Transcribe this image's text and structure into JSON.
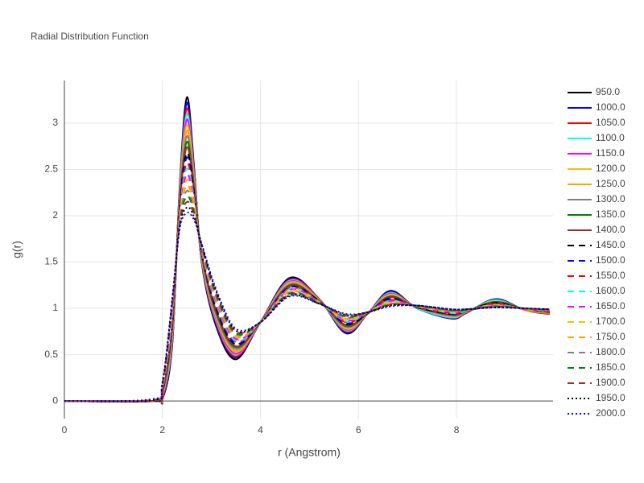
{
  "chart_data": {
    "type": "line",
    "title": "Radial Distribution Function",
    "x_label": "r (Angstrom)",
    "y_label": "g(r)",
    "x": [
      0,
      1.8,
      2.0,
      2.2,
      2.35,
      2.5,
      2.65,
      2.8,
      3.1,
      3.5,
      4.0,
      4.6,
      5.2,
      5.75,
      6.2,
      6.65,
      7.2,
      7.9,
      8.2,
      8.8,
      9.4,
      9.9
    ],
    "xlim": [
      0,
      9.97
    ],
    "xticks": [
      0,
      2,
      4,
      6,
      8
    ],
    "ylim": [
      -0.19,
      3.46
    ],
    "yticks": [
      0,
      0.5,
      1,
      1.5,
      2,
      2.5,
      3
    ],
    "grid": true,
    "legend": "right",
    "series": [
      {
        "name": "950.0",
        "color": "#000000",
        "dash": "solid",
        "values": [
          0,
          0,
          0.02,
          0.6,
          2.3,
          3.28,
          2.5,
          1.5,
          0.8,
          0.45,
          0.85,
          1.33,
          1.1,
          0.73,
          0.95,
          1.19,
          1.0,
          0.89,
          0.95,
          1.1,
          0.98,
          0.94
        ]
      },
      {
        "name": "1000.0",
        "color": "#0000ff",
        "dash": "solid",
        "values": [
          0,
          0,
          0.03,
          0.62,
          2.28,
          3.22,
          2.47,
          1.51,
          0.82,
          0.47,
          0.85,
          1.32,
          1.1,
          0.74,
          0.95,
          1.18,
          1.0,
          0.89,
          0.95,
          1.1,
          0.98,
          0.94
        ]
      },
      {
        "name": "1050.0",
        "color": "#ff0000",
        "dash": "solid",
        "values": [
          0,
          0,
          0.04,
          0.65,
          2.26,
          3.16,
          2.45,
          1.52,
          0.84,
          0.48,
          0.85,
          1.31,
          1.1,
          0.75,
          0.95,
          1.17,
          1.0,
          0.9,
          0.95,
          1.09,
          0.98,
          0.94
        ]
      },
      {
        "name": "1100.0",
        "color": "#00ffff",
        "dash": "solid",
        "values": [
          0,
          0,
          0.05,
          0.67,
          2.24,
          3.1,
          2.42,
          1.53,
          0.86,
          0.5,
          0.85,
          1.3,
          1.09,
          0.76,
          0.95,
          1.17,
          1.0,
          0.9,
          0.96,
          1.09,
          0.98,
          0.95
        ]
      },
      {
        "name": "1150.0",
        "color": "#ff00ff",
        "dash": "solid",
        "values": [
          0,
          0,
          0.05,
          0.7,
          2.21,
          3.04,
          2.4,
          1.54,
          0.88,
          0.51,
          0.85,
          1.29,
          1.09,
          0.77,
          0.95,
          1.16,
          1.01,
          0.91,
          0.96,
          1.08,
          0.98,
          0.95
        ]
      },
      {
        "name": "1200.0",
        "color": "#f5c000",
        "dash": "solid",
        "values": [
          0,
          0,
          0.06,
          0.72,
          2.19,
          2.98,
          2.37,
          1.55,
          0.9,
          0.53,
          0.85,
          1.28,
          1.09,
          0.78,
          0.95,
          1.15,
          1.01,
          0.91,
          0.96,
          1.08,
          0.98,
          0.95
        ]
      },
      {
        "name": "1250.0",
        "color": "#ffa500",
        "dash": "solid",
        "values": [
          0,
          0,
          0.07,
          0.74,
          2.17,
          2.92,
          2.34,
          1.56,
          0.91,
          0.54,
          0.85,
          1.27,
          1.09,
          0.79,
          0.95,
          1.14,
          1.01,
          0.92,
          0.96,
          1.07,
          0.99,
          0.95
        ]
      },
      {
        "name": "1300.0",
        "color": "#808080",
        "dash": "solid",
        "values": [
          0,
          0,
          0.08,
          0.77,
          2.15,
          2.86,
          2.32,
          1.57,
          0.93,
          0.56,
          0.85,
          1.26,
          1.08,
          0.8,
          0.95,
          1.13,
          1.01,
          0.92,
          0.96,
          1.07,
          0.99,
          0.96
        ]
      },
      {
        "name": "1350.0",
        "color": "#008000",
        "dash": "solid",
        "values": [
          0,
          0,
          0.09,
          0.79,
          2.13,
          2.8,
          2.29,
          1.58,
          0.95,
          0.58,
          0.85,
          1.25,
          1.08,
          0.81,
          0.95,
          1.13,
          1.01,
          0.93,
          0.97,
          1.07,
          0.99,
          0.96
        ]
      },
      {
        "name": "1400.0",
        "color": "#a52a2a",
        "dash": "solid",
        "values": [
          0,
          0,
          0.1,
          0.81,
          2.11,
          2.74,
          2.26,
          1.59,
          0.97,
          0.59,
          0.85,
          1.24,
          1.08,
          0.82,
          0.95,
          1.12,
          1.01,
          0.93,
          0.97,
          1.06,
          0.99,
          0.96
        ]
      },
      {
        "name": "1450.0",
        "color": "#000000",
        "dash": "dash",
        "values": [
          0,
          0,
          0.11,
          0.84,
          2.09,
          2.68,
          2.24,
          1.6,
          0.99,
          0.61,
          0.85,
          1.23,
          1.08,
          0.83,
          0.95,
          1.11,
          1.01,
          0.94,
          0.97,
          1.06,
          0.99,
          0.96
        ]
      },
      {
        "name": "1500.0",
        "color": "#0000ff",
        "dash": "dash",
        "values": [
          0,
          0.01,
          0.11,
          0.86,
          2.06,
          2.63,
          2.21,
          1.6,
          1.01,
          0.62,
          0.85,
          1.23,
          1.07,
          0.84,
          0.96,
          1.1,
          1.02,
          0.94,
          0.97,
          1.05,
          0.99,
          0.97
        ]
      },
      {
        "name": "1550.0",
        "color": "#ff0000",
        "dash": "dash",
        "values": [
          0,
          0.01,
          0.12,
          0.89,
          2.04,
          2.57,
          2.19,
          1.61,
          1.03,
          0.64,
          0.85,
          1.22,
          1.07,
          0.85,
          0.96,
          1.09,
          1.02,
          0.95,
          0.97,
          1.05,
          0.99,
          0.97
        ]
      },
      {
        "name": "1600.0",
        "color": "#00ffff",
        "dash": "dash",
        "values": [
          0,
          0.01,
          0.13,
          0.91,
          2.02,
          2.51,
          2.16,
          1.62,
          1.05,
          0.65,
          0.85,
          1.21,
          1.07,
          0.86,
          0.96,
          1.08,
          1.02,
          0.95,
          0.97,
          1.04,
          0.99,
          0.97
        ]
      },
      {
        "name": "1650.0",
        "color": "#ff00ff",
        "dash": "dash",
        "values": [
          0,
          0.01,
          0.14,
          0.93,
          2.0,
          2.45,
          2.13,
          1.63,
          1.07,
          0.67,
          0.85,
          1.2,
          1.07,
          0.87,
          0.96,
          1.08,
          1.02,
          0.96,
          0.98,
          1.04,
          0.99,
          0.97
        ]
      },
      {
        "name": "1700.0",
        "color": "#f5c000",
        "dash": "dash",
        "values": [
          0,
          0.01,
          0.15,
          0.96,
          1.98,
          2.39,
          2.11,
          1.64,
          1.09,
          0.69,
          0.85,
          1.19,
          1.06,
          0.88,
          0.96,
          1.07,
          1.02,
          0.96,
          0.98,
          1.04,
          0.99,
          0.98
        ]
      },
      {
        "name": "1750.0",
        "color": "#ffa500",
        "dash": "dash",
        "values": [
          0,
          0.01,
          0.16,
          0.98,
          1.96,
          2.33,
          2.08,
          1.65,
          1.1,
          0.7,
          0.85,
          1.18,
          1.06,
          0.89,
          0.96,
          1.06,
          1.02,
          0.97,
          0.98,
          1.03,
          1.0,
          0.98
        ]
      },
      {
        "name": "1800.0",
        "color": "#808080",
        "dash": "dash",
        "values": [
          0,
          0.01,
          0.17,
          1.0,
          1.94,
          2.27,
          2.05,
          1.66,
          1.12,
          0.72,
          0.85,
          1.17,
          1.06,
          0.9,
          0.96,
          1.05,
          1.02,
          0.97,
          0.98,
          1.03,
          1.0,
          0.98
        ]
      },
      {
        "name": "1850.0",
        "color": "#008000",
        "dash": "dash",
        "values": [
          0,
          0.01,
          0.17,
          1.03,
          1.91,
          2.21,
          2.03,
          1.67,
          1.14,
          0.73,
          0.85,
          1.16,
          1.06,
          0.91,
          0.96,
          1.04,
          1.03,
          0.98,
          0.98,
          1.02,
          1.0,
          0.98
        ]
      },
      {
        "name": "1900.0",
        "color": "#a52a2a",
        "dash": "dash",
        "values": [
          0,
          0.01,
          0.18,
          1.05,
          1.89,
          2.15,
          2.0,
          1.68,
          1.16,
          0.75,
          0.85,
          1.15,
          1.05,
          0.92,
          0.96,
          1.04,
          1.03,
          0.98,
          0.99,
          1.02,
          1.0,
          0.99
        ]
      },
      {
        "name": "1950.0",
        "color": "#000000",
        "dash": "dot",
        "values": [
          0,
          0.01,
          0.19,
          1.08,
          1.87,
          2.09,
          1.98,
          1.69,
          1.18,
          0.76,
          0.85,
          1.14,
          1.05,
          0.93,
          0.96,
          1.03,
          1.03,
          0.99,
          0.99,
          1.01,
          1.0,
          0.99
        ]
      },
      {
        "name": "2000.0",
        "color": "#0000ff",
        "dash": "dot",
        "values": [
          0,
          0.02,
          0.2,
          1.1,
          1.85,
          2.03,
          1.95,
          1.7,
          1.2,
          0.78,
          0.85,
          1.13,
          1.05,
          0.94,
          0.96,
          1.02,
          1.03,
          0.99,
          0.99,
          1.01,
          1.0,
          0.99
        ]
      }
    ]
  }
}
